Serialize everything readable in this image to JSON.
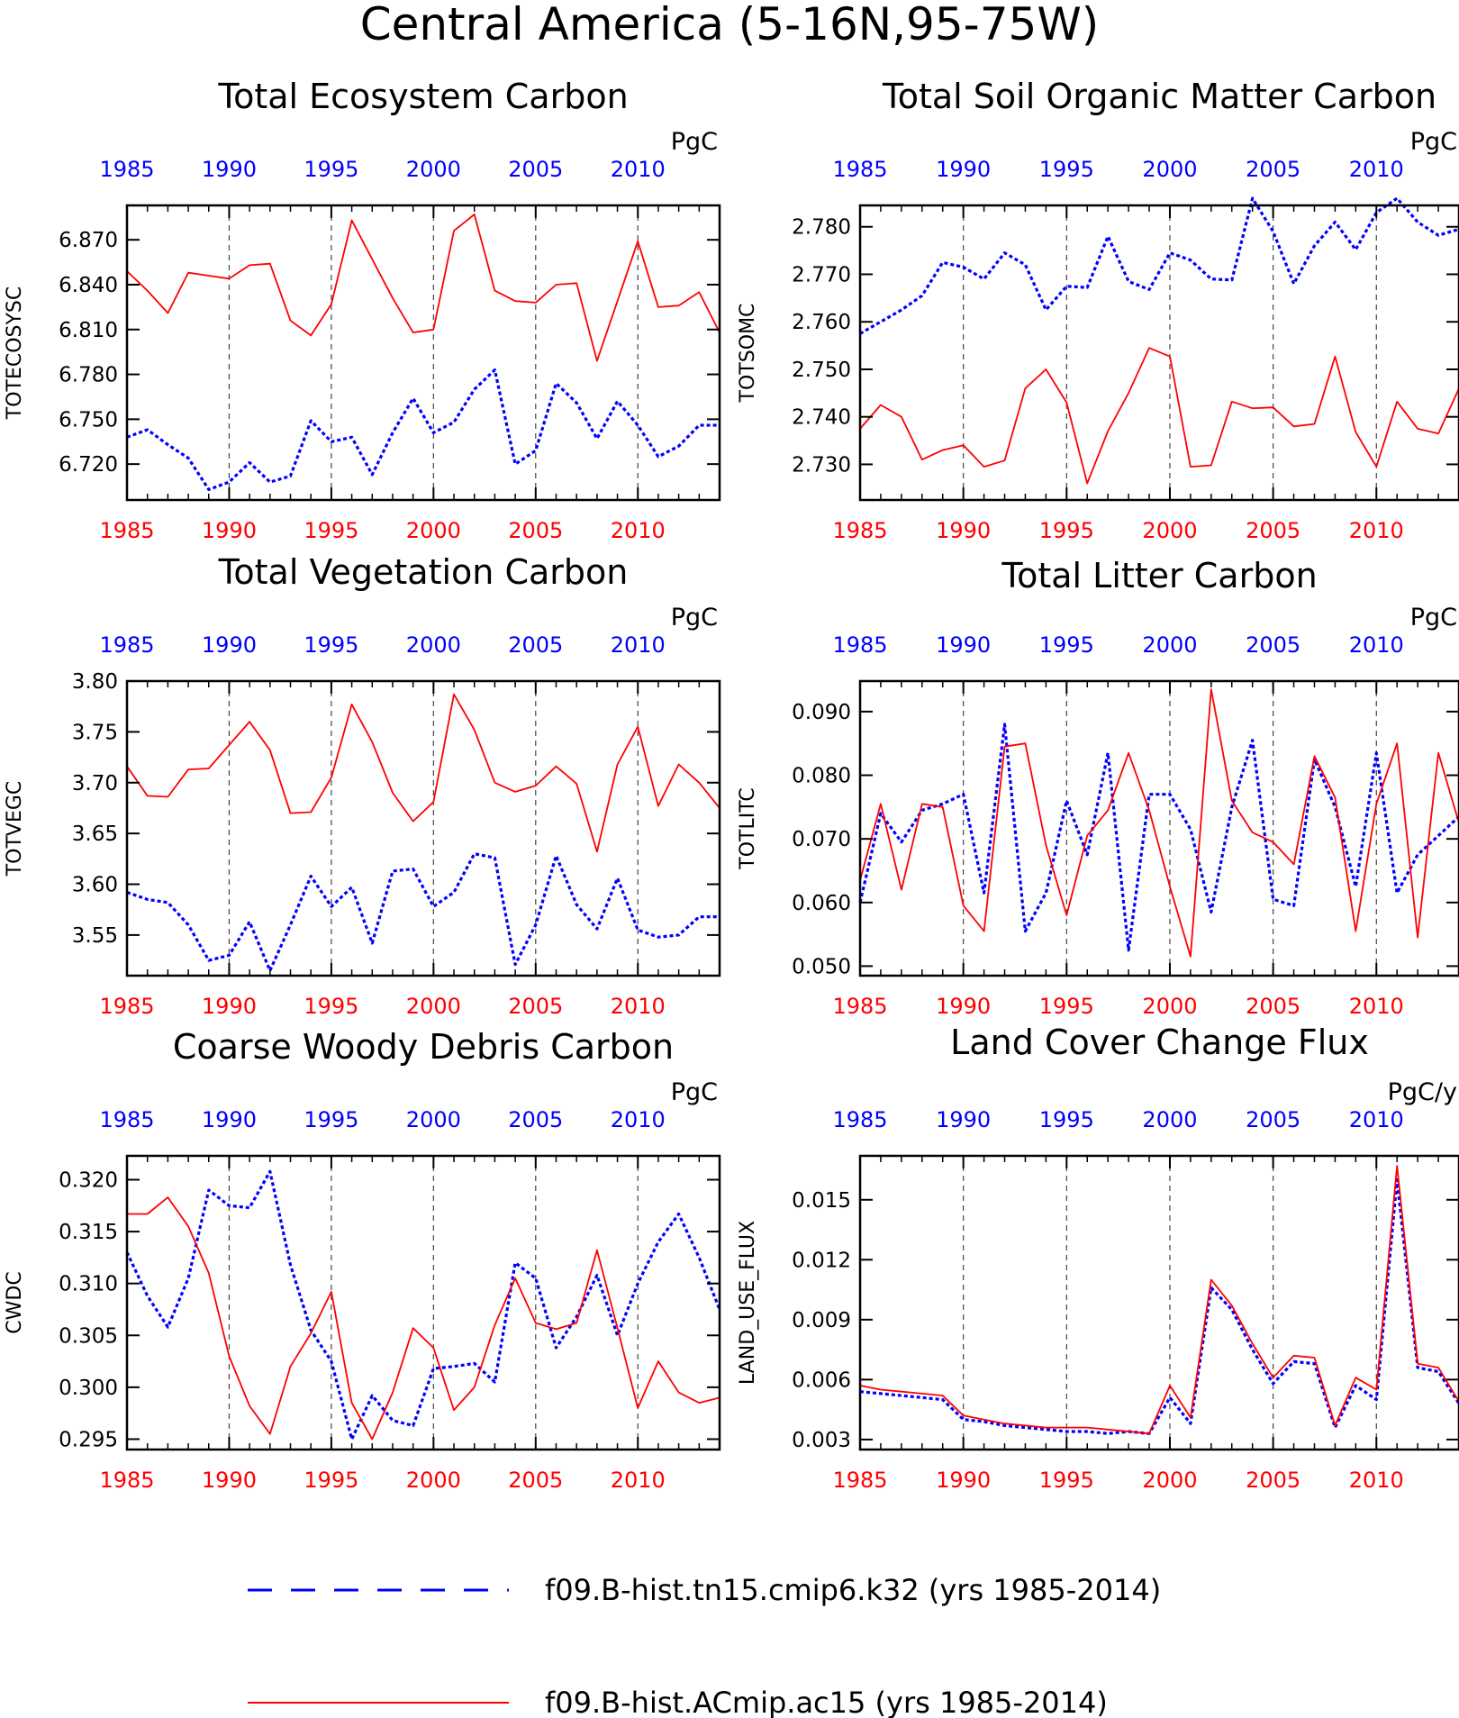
{
  "main_title": "Central America (5-16N,95-75W)",
  "legend": [
    {
      "label": "f09.B-hist.tn15.cmip6.k32 (yrs 1985-2014)",
      "color": "#0000ff",
      "style": "dashed"
    },
    {
      "label": "f09.B-hist.ACmip.ac15 (yrs 1985-2014)",
      "color": "#ff0000",
      "style": "solid"
    }
  ],
  "colors": {
    "blue_series": "#0000ff",
    "red_series": "#ff0000",
    "axis": "#000000"
  },
  "chart_data": [
    {
      "type": "line",
      "title": "Total Ecosystem Carbon",
      "ylabel": "TOTECOSYSC",
      "units": "PgC",
      "xlim": [
        1985,
        2014
      ],
      "ylim": [
        6.696,
        6.893
      ],
      "yticks": [
        6.72,
        6.75,
        6.78,
        6.81,
        6.84,
        6.87
      ],
      "ytick_labels": [
        "6.720",
        "6.750",
        "6.780",
        "6.810",
        "6.840",
        "6.870"
      ],
      "xticks": [
        1985,
        1990,
        1995,
        2000,
        2005,
        2010
      ],
      "xtick_labels": [
        "1985",
        "1990",
        "1995",
        "2000",
        "2005",
        "2010"
      ],
      "grid": "dashed vertical lines at 1990, 1995, 2000, 2005, 2010",
      "x": [
        1985,
        1986,
        1987,
        1988,
        1989,
        1990,
        1991,
        1992,
        1993,
        1994,
        1995,
        1996,
        1997,
        1998,
        1999,
        2000,
        2001,
        2002,
        2003,
        2004,
        2005,
        2006,
        2007,
        2008,
        2009,
        2010,
        2011,
        2012,
        2013,
        2014
      ],
      "series": [
        {
          "color": "#0000ff",
          "style": "dashed",
          "values": [
            6.738,
            6.743,
            6.733,
            6.724,
            6.703,
            6.708,
            6.721,
            6.708,
            6.712,
            6.749,
            6.735,
            6.738,
            6.713,
            6.741,
            6.764,
            6.741,
            6.748,
            6.77,
            6.783,
            6.72,
            6.729,
            6.774,
            6.761,
            6.737,
            6.762,
            6.746,
            6.725,
            6.732,
            6.746,
            6.746
          ]
        },
        {
          "color": "#ff0000",
          "style": "solid",
          "values": [
            6.849,
            6.836,
            6.821,
            6.848,
            6.846,
            6.844,
            6.853,
            6.854,
            6.816,
            6.806,
            6.827,
            6.883,
            6.857,
            6.831,
            6.808,
            6.81,
            6.876,
            6.887,
            6.836,
            6.829,
            6.828,
            6.84,
            6.841,
            6.789,
            6.829,
            6.869,
            6.825,
            6.826,
            6.835,
            6.808
          ]
        }
      ]
    },
    {
      "type": "line",
      "title": "Total Soil Organic Matter Carbon",
      "ylabel": "TOTSOMC",
      "units": "PgC",
      "xlim": [
        1985,
        2014
      ],
      "ylim": [
        2.7225,
        2.7845
      ],
      "yticks": [
        2.73,
        2.74,
        2.75,
        2.76,
        2.77,
        2.78
      ],
      "ytick_labels": [
        "2.730",
        "2.740",
        "2.750",
        "2.760",
        "2.770",
        "2.780"
      ],
      "xticks": [
        1985,
        1990,
        1995,
        2000,
        2005,
        2010
      ],
      "xtick_labels": [
        "1985",
        "1990",
        "1995",
        "2000",
        "2005",
        "2010"
      ],
      "grid": "dashed vertical lines at 1990, 1995, 2000, 2005, 2010",
      "x": [
        1985,
        1986,
        1987,
        1988,
        1989,
        1990,
        1991,
        1992,
        1993,
        1994,
        1995,
        1996,
        1997,
        1998,
        1999,
        2000,
        2001,
        2002,
        2003,
        2004,
        2005,
        2006,
        2007,
        2008,
        2009,
        2010,
        2011,
        2012,
        2013,
        2014
      ],
      "series": [
        {
          "color": "#0000ff",
          "style": "dashed",
          "values": [
            2.7575,
            2.76,
            2.7625,
            2.7655,
            2.7725,
            2.7715,
            2.769,
            2.7745,
            2.772,
            2.7625,
            2.7675,
            2.7672,
            2.778,
            2.7685,
            2.7668,
            2.7745,
            2.773,
            2.769,
            2.7688,
            2.786,
            2.779,
            2.768,
            2.776,
            2.781,
            2.7752,
            2.783,
            2.786,
            2.781,
            2.7782,
            2.7795
          ]
        },
        {
          "color": "#ff0000",
          "style": "solid",
          "values": [
            2.7375,
            2.7425,
            2.74,
            2.731,
            2.733,
            2.734,
            2.7295,
            2.7308,
            2.746,
            2.75,
            2.743,
            2.726,
            2.737,
            2.745,
            2.7545,
            2.7527,
            2.7295,
            2.7298,
            2.7432,
            2.7418,
            2.742,
            2.738,
            2.7385,
            2.7527,
            2.7368,
            2.7295,
            2.7432,
            2.7375,
            2.7365,
            2.746
          ]
        }
      ]
    },
    {
      "type": "line",
      "title": "Total Vegetation Carbon",
      "ylabel": "TOTVEGC",
      "units": "PgC",
      "xlim": [
        1985,
        2014
      ],
      "ylim": [
        3.51,
        3.8
      ],
      "yticks": [
        3.55,
        3.6,
        3.65,
        3.7,
        3.75,
        3.8
      ],
      "ytick_labels": [
        "3.55",
        "3.60",
        "3.65",
        "3.70",
        "3.75",
        "3.80"
      ],
      "xticks": [
        1985,
        1990,
        1995,
        2000,
        2005,
        2010
      ],
      "xtick_labels": [
        "1985",
        "1990",
        "1995",
        "2000",
        "2005",
        "2010"
      ],
      "grid": "dashed vertical lines at 1990, 1995, 2000, 2005, 2010",
      "x": [
        1985,
        1986,
        1987,
        1988,
        1989,
        1990,
        1991,
        1992,
        1993,
        1994,
        1995,
        1996,
        1997,
        1998,
        1999,
        2000,
        2001,
        2002,
        2003,
        2004,
        2005,
        2006,
        2007,
        2008,
        2009,
        2010,
        2011,
        2012,
        2013,
        2014
      ],
      "series": [
        {
          "color": "#0000ff",
          "style": "dashed",
          "values": [
            3.592,
            3.585,
            3.582,
            3.56,
            3.525,
            3.53,
            3.563,
            3.515,
            3.56,
            3.608,
            3.578,
            3.597,
            3.542,
            3.613,
            3.615,
            3.578,
            3.592,
            3.63,
            3.626,
            3.521,
            3.56,
            3.628,
            3.58,
            3.556,
            3.606,
            3.555,
            3.548,
            3.55,
            3.568,
            3.568
          ]
        },
        {
          "color": "#ff0000",
          "style": "solid",
          "values": [
            3.716,
            3.687,
            3.686,
            3.713,
            3.714,
            3.737,
            3.76,
            3.732,
            3.67,
            3.671,
            3.705,
            3.777,
            3.74,
            3.69,
            3.662,
            3.681,
            3.787,
            3.752,
            3.7,
            3.691,
            3.697,
            3.716,
            3.699,
            3.632,
            3.718,
            3.755,
            3.677,
            3.718,
            3.7,
            3.675
          ]
        }
      ]
    },
    {
      "type": "line",
      "title": "Total Litter Carbon",
      "ylabel": "TOTLITC",
      "units": "PgC",
      "xlim": [
        1985,
        2014
      ],
      "ylim": [
        0.0485,
        0.0948
      ],
      "yticks": [
        0.05,
        0.06,
        0.07,
        0.08,
        0.09
      ],
      "ytick_labels": [
        "0.050",
        "0.060",
        "0.070",
        "0.080",
        "0.090"
      ],
      "xticks": [
        1985,
        1990,
        1995,
        2000,
        2005,
        2010
      ],
      "xtick_labels": [
        "1985",
        "1990",
        "1995",
        "2000",
        "2005",
        "2010"
      ],
      "grid": "dashed vertical lines at 1990, 1995, 2000, 2005, 2010",
      "x": [
        1985,
        1986,
        1987,
        1988,
        1989,
        1990,
        1991,
        1992,
        1993,
        1994,
        1995,
        1996,
        1997,
        1998,
        1999,
        2000,
        2001,
        2002,
        2003,
        2004,
        2005,
        2006,
        2007,
        2008,
        2009,
        2010,
        2011,
        2012,
        2013,
        2014
      ],
      "series": [
        {
          "color": "#0000ff",
          "style": "dashed",
          "values": [
            0.06,
            0.074,
            0.0695,
            0.0745,
            0.0755,
            0.077,
            0.0615,
            0.088,
            0.0555,
            0.0615,
            0.076,
            0.0675,
            0.0835,
            0.0525,
            0.077,
            0.077,
            0.0715,
            0.0585,
            0.075,
            0.0855,
            0.0605,
            0.0595,
            0.0825,
            0.075,
            0.0625,
            0.0835,
            0.0615,
            0.0675,
            0.0705,
            0.0735
          ]
        },
        {
          "color": "#ff0000",
          "style": "solid",
          "values": [
            0.0635,
            0.0755,
            0.062,
            0.0755,
            0.075,
            0.0595,
            0.0555,
            0.0845,
            0.085,
            0.069,
            0.058,
            0.0705,
            0.0745,
            0.0835,
            0.0745,
            0.0625,
            0.0515,
            0.0935,
            0.076,
            0.071,
            0.0695,
            0.066,
            0.083,
            0.0765,
            0.0555,
            0.0755,
            0.085,
            0.0545,
            0.0835,
            0.0725
          ]
        }
      ]
    },
    {
      "type": "line",
      "title": "Coarse Woody Debris Carbon",
      "ylabel": "CWDC",
      "units": "PgC",
      "xlim": [
        1985,
        2014
      ],
      "ylim": [
        0.294,
        0.3223
      ],
      "yticks": [
        0.295,
        0.3,
        0.305,
        0.31,
        0.315,
        0.32
      ],
      "ytick_labels": [
        "0.295",
        "0.300",
        "0.305",
        "0.310",
        "0.315",
        "0.320"
      ],
      "xticks": [
        1985,
        1990,
        1995,
        2000,
        2005,
        2010
      ],
      "xtick_labels": [
        "1985",
        "1990",
        "1995",
        "2000",
        "2005",
        "2010"
      ],
      "grid": "dashed vertical lines at 1990, 1995, 2000, 2005, 2010",
      "x": [
        1985,
        1986,
        1987,
        1988,
        1989,
        1990,
        1991,
        1992,
        1993,
        1994,
        1995,
        1996,
        1997,
        1998,
        1999,
        2000,
        2001,
        2002,
        2003,
        2004,
        2005,
        2006,
        2007,
        2008,
        2009,
        2010,
        2011,
        2012,
        2013,
        2014
      ],
      "series": [
        {
          "color": "#0000ff",
          "style": "dashed",
          "values": [
            0.313,
            0.3088,
            0.3058,
            0.3105,
            0.319,
            0.3175,
            0.3173,
            0.3208,
            0.3118,
            0.3055,
            0.3025,
            0.295,
            0.2992,
            0.2968,
            0.2963,
            0.3018,
            0.302,
            0.3023,
            0.3005,
            0.312,
            0.3105,
            0.3038,
            0.3068,
            0.3108,
            0.305,
            0.31,
            0.314,
            0.3167,
            0.3125,
            0.3075
          ]
        },
        {
          "color": "#ff0000",
          "style": "solid",
          "values": [
            0.3167,
            0.3167,
            0.3183,
            0.3155,
            0.311,
            0.303,
            0.2982,
            0.2955,
            0.302,
            0.3052,
            0.3092,
            0.2985,
            0.295,
            0.2995,
            0.3057,
            0.3038,
            0.2978,
            0.3,
            0.306,
            0.3105,
            0.3062,
            0.3056,
            0.3062,
            0.3132,
            0.3057,
            0.298,
            0.3025,
            0.2995,
            0.2985,
            0.299
          ]
        }
      ]
    },
    {
      "type": "line",
      "title": "Land Cover Change Flux",
      "ylabel": "LAND_USE_FLUX",
      "units": "PgC/y",
      "xlim": [
        1985,
        2014
      ],
      "ylim": [
        0.0025,
        0.0172
      ],
      "yticks": [
        0.003,
        0.006,
        0.009,
        0.012,
        0.015
      ],
      "ytick_labels": [
        "0.003",
        "0.006",
        "0.009",
        "0.012",
        "0.015"
      ],
      "xticks": [
        1985,
        1990,
        1995,
        2000,
        2005,
        2010
      ],
      "xtick_labels": [
        "1985",
        "1990",
        "1995",
        "2000",
        "2005",
        "2010"
      ],
      "grid": "dashed vertical lines at 1990, 1995, 2000, 2005, 2010",
      "x": [
        1985,
        1986,
        1987,
        1988,
        1989,
        1990,
        1991,
        1992,
        1993,
        1994,
        1995,
        1996,
        1997,
        1998,
        1999,
        2000,
        2001,
        2002,
        2003,
        2004,
        2005,
        2006,
        2007,
        2008,
        2009,
        2010,
        2011,
        2012,
        2013,
        2014
      ],
      "series": [
        {
          "color": "#0000ff",
          "style": "dashed",
          "values": [
            0.0054,
            0.0053,
            0.0052,
            0.0051,
            0.005,
            0.004,
            0.0039,
            0.0037,
            0.0036,
            0.0035,
            0.0034,
            0.0034,
            0.0033,
            0.0034,
            0.0033,
            0.0051,
            0.0038,
            0.0106,
            0.0095,
            0.0075,
            0.0058,
            0.0069,
            0.0068,
            0.0036,
            0.0057,
            0.005,
            0.016,
            0.0066,
            0.0064,
            0.0048
          ]
        },
        {
          "color": "#ff0000",
          "style": "solid",
          "values": [
            0.0057,
            0.0055,
            0.0054,
            0.0053,
            0.0052,
            0.0042,
            0.004,
            0.0038,
            0.0037,
            0.0036,
            0.0036,
            0.0036,
            0.0035,
            0.0034,
            0.0033,
            0.0057,
            0.0041,
            0.011,
            0.0097,
            0.0078,
            0.0061,
            0.0072,
            0.0071,
            0.0037,
            0.0061,
            0.0055,
            0.0167,
            0.0068,
            0.0066,
            0.0049
          ]
        }
      ]
    }
  ]
}
